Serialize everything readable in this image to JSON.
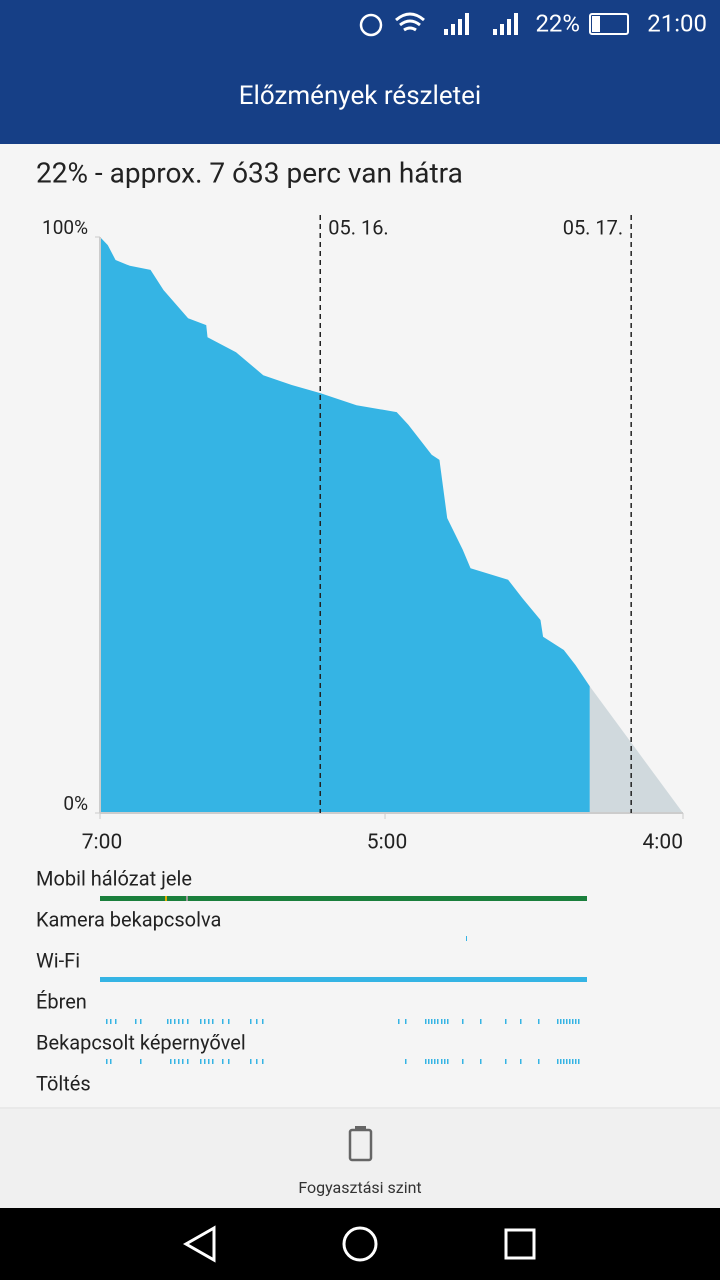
{
  "status_bar": {
    "battery": "22%",
    "time": "21:00"
  },
  "header": {
    "title": "Előzmények részletei"
  },
  "summary": "22% - approx. 7 ó33 perc van hátra",
  "chart_data": {
    "type": "area",
    "x": [
      0,
      0.6,
      1.2,
      2.3,
      3.9,
      4.9,
      6.8,
      8.2,
      8.3,
      10.5,
      12.6,
      14.8,
      17,
      19.8,
      22.9,
      23.8,
      25.6,
      26.2,
      26.8,
      28,
      28.6,
      31.5,
      32.6,
      34,
      34.2,
      35.8,
      36.7,
      37.8
    ],
    "series": [
      {
        "color": "#35b4e4",
        "values": [
          100,
          98.6,
          96,
          95,
          94.3,
          90.8,
          85.9,
          84.7,
          82.6,
          80,
          76,
          74.3,
          72.9,
          70.8,
          69.6,
          67.4,
          62.2,
          61.3,
          51.2,
          45.7,
          42.5,
          40.5,
          37.3,
          33.5,
          30.6,
          28.3,
          25.7,
          22
        ]
      }
    ],
    "prediction": {
      "color": "#d0d9dd",
      "x": [
        37.8,
        45
      ],
      "values": [
        22,
        0
      ]
    },
    "xlim": [
      0,
      45
    ],
    "xticks": [
      {
        "value": 0,
        "label": "7:00"
      },
      {
        "value": 22,
        "label": "5:00"
      },
      {
        "value": 45,
        "label": "4:00"
      }
    ],
    "ylim": [
      0,
      100
    ],
    "yticks": [
      {
        "value": 0,
        "label": "0%"
      },
      {
        "value": 100,
        "label": "100%"
      }
    ],
    "markers": [
      {
        "value": 17,
        "label": "05. 16."
      },
      {
        "value": 41,
        "label": "05. 17."
      }
    ]
  },
  "timeline": {
    "rows": [
      "Mobil hálózat jele",
      "Kamera bekapcsolva",
      "Wi-Fi",
      "Ébren",
      "Bekapcsolt képernyővel",
      "Töltés"
    ]
  },
  "bottom_tab": {
    "label": "Fogyasztási szint"
  }
}
